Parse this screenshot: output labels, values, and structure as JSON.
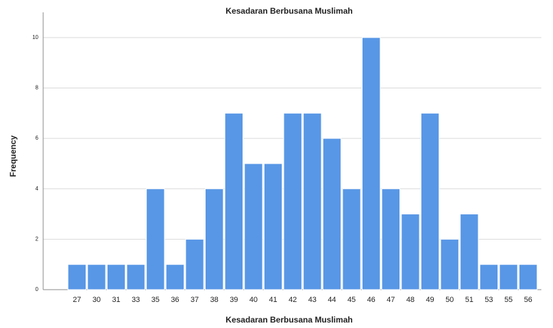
{
  "chart_data": {
    "type": "bar",
    "title": "Kesadaran Berbusana Muslimah",
    "x_label": "Kesadaran Berbusana Muslimah",
    "y_label": "Frequency",
    "categories": [
      "27",
      "30",
      "31",
      "33",
      "35",
      "36",
      "37",
      "38",
      "39",
      "40",
      "41",
      "42",
      "43",
      "44",
      "45",
      "46",
      "47",
      "48",
      "49",
      "50",
      "51",
      "53",
      "55",
      "56"
    ],
    "values": [
      1,
      1,
      1,
      1,
      4,
      1,
      2,
      4,
      7,
      5,
      5,
      7,
      7,
      6,
      4,
      10,
      4,
      3,
      7,
      2,
      3,
      1,
      1,
      1
    ],
    "color": "#5897e6",
    "ylim": [
      0,
      11
    ],
    "yticks": [
      0,
      2,
      4,
      6,
      8,
      10
    ],
    "grid": true
  }
}
